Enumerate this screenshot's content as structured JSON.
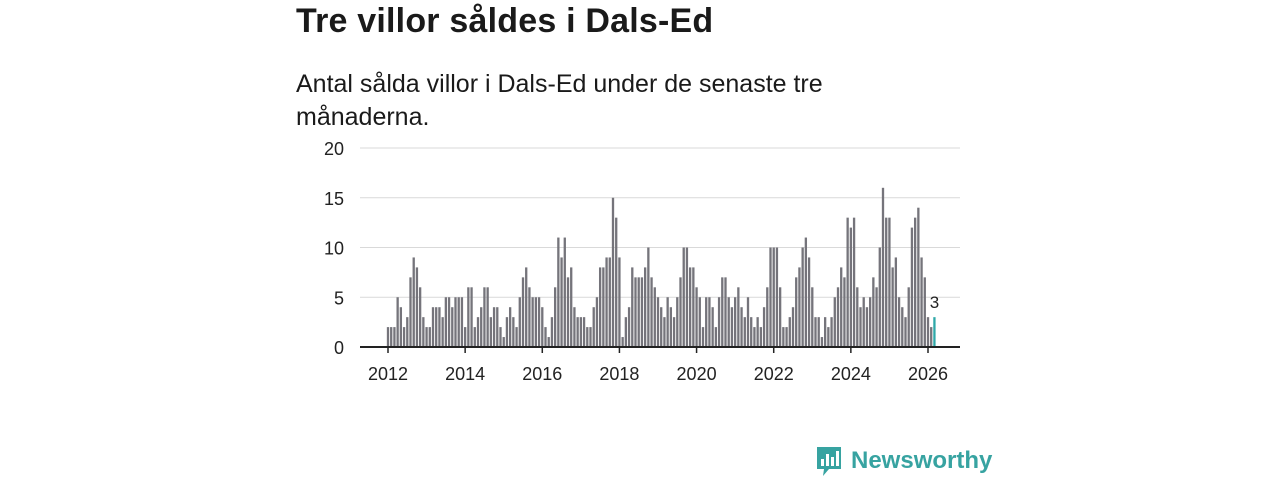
{
  "title": "Tre villor såldes i Dals-Ed",
  "subtitle": "Antal sålda villor i Dals-Ed under de senaste tre månaderna.",
  "brand": {
    "name": "Newsworthy",
    "color": "#37a3a1",
    "icon": "bar-chart-speech-bubble-icon"
  },
  "colors": {
    "bar": "#75747b",
    "highlight": "#2fa8a8",
    "grid": "#d9d9d9",
    "axis": "#222222"
  },
  "chart_data": {
    "type": "bar",
    "title": "Tre villor såldes i Dals-Ed",
    "xlabel": "",
    "ylabel": "",
    "ylim": [
      0,
      20
    ],
    "yticks": [
      0,
      5,
      10,
      15,
      20
    ],
    "xticks": [
      "2012",
      "2014",
      "2016",
      "2018",
      "2020",
      "2022",
      "2024",
      "2026"
    ],
    "x_start": {
      "year": 2012,
      "month": 1
    },
    "interval": "month",
    "grid": true,
    "values": [
      2,
      2,
      2,
      5,
      4,
      2,
      3,
      7,
      9,
      8,
      6,
      3,
      2,
      2,
      4,
      4,
      4,
      3,
      5,
      5,
      4,
      5,
      5,
      5,
      2,
      6,
      6,
      2,
      3,
      4,
      6,
      6,
      3,
      4,
      4,
      2,
      1,
      3,
      4,
      3,
      2,
      5,
      7,
      8,
      6,
      5,
      5,
      5,
      4,
      2,
      1,
      3,
      6,
      11,
      9,
      11,
      7,
      8,
      4,
      3,
      3,
      3,
      2,
      2,
      4,
      5,
      8,
      8,
      9,
      9,
      15,
      13,
      9,
      1,
      3,
      4,
      8,
      7,
      7,
      7,
      8,
      10,
      7,
      6,
      5,
      4,
      3,
      5,
      4,
      3,
      5,
      7,
      10,
      10,
      8,
      8,
      6,
      5,
      2,
      5,
      5,
      4,
      2,
      5,
      7,
      7,
      5,
      4,
      5,
      6,
      4,
      3,
      5,
      3,
      2,
      3,
      2,
      4,
      6,
      10,
      10,
      10,
      6,
      2,
      2,
      3,
      4,
      7,
      8,
      10,
      11,
      9,
      6,
      3,
      3,
      1,
      3,
      2,
      3,
      5,
      6,
      8,
      7,
      13,
      12,
      13,
      6,
      4,
      5,
      4,
      5,
      7,
      6,
      10,
      16,
      13,
      13,
      8,
      9,
      5,
      4,
      3,
      6,
      12,
      13,
      14,
      9,
      7,
      3,
      2,
      3
    ],
    "highlight_last": true,
    "last_label": "3"
  }
}
